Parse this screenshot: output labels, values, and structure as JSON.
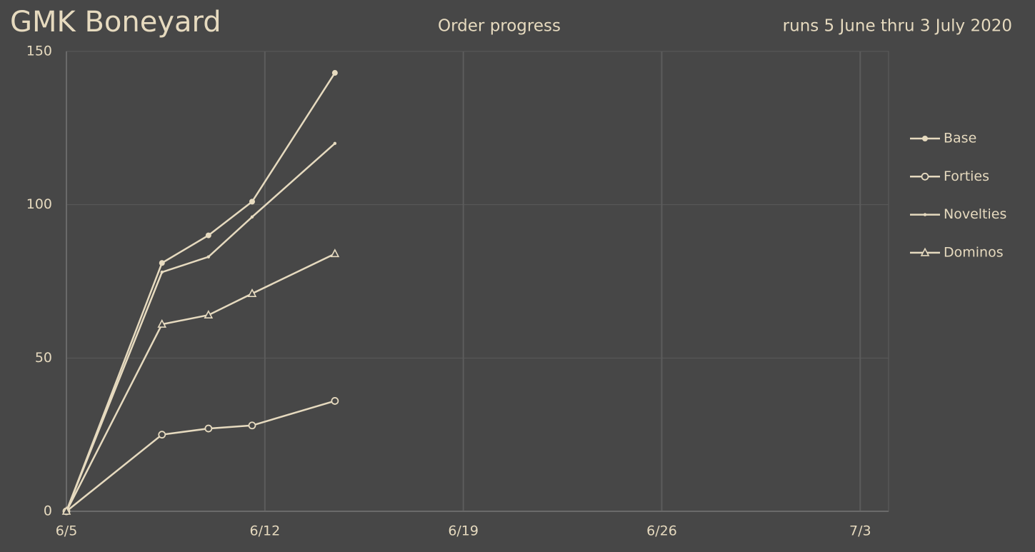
{
  "chart_data": {
    "type": "line",
    "title": "GMK Boneyard",
    "subtitle": "Order progress",
    "annotation": "runs 5 June thru 3 July 2020",
    "x": [
      0,
      3.37,
      5.01,
      6.55,
      9.47
    ],
    "xlim": [
      0,
      29
    ],
    "xticks": [
      {
        "value": 0,
        "label": "6/5"
      },
      {
        "value": 7,
        "label": "6/12"
      },
      {
        "value": 14,
        "label": "6/19"
      },
      {
        "value": 21,
        "label": "6/26"
      },
      {
        "value": 28,
        "label": "7/3"
      }
    ],
    "ylim": [
      0,
      150
    ],
    "yticks": [
      0,
      50,
      100,
      150
    ],
    "grid": true,
    "legend": "right",
    "series": [
      {
        "name": "Base",
        "color": "#e6dabf",
        "marker": "filled-circle",
        "values": [
          0,
          81,
          90,
          101,
          143
        ]
      },
      {
        "name": "Forties",
        "color": "#e6dabf",
        "marker": "open-circle",
        "values": [
          0,
          25,
          27,
          28,
          36
        ]
      },
      {
        "name": "Novelties",
        "color": "#e6dabf",
        "marker": "dot",
        "values": [
          0,
          78,
          83,
          96,
          120
        ]
      },
      {
        "name": "Dominos",
        "color": "#e6dabf",
        "marker": "triangle",
        "values": [
          0,
          61,
          64,
          71,
          84
        ]
      }
    ]
  }
}
